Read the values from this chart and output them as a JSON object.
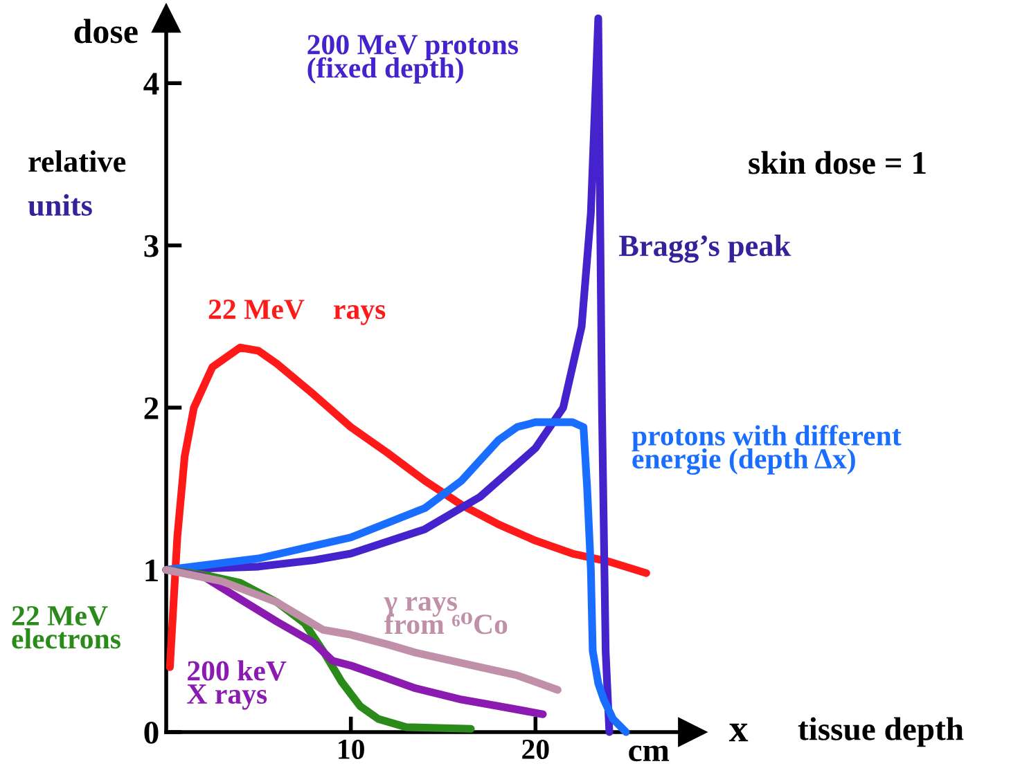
{
  "chart_data": {
    "type": "line",
    "xlabel": "x",
    "ylabel": "dose",
    "xlim": [
      0,
      28.5
    ],
    "ylim": [
      0,
      4.4
    ],
    "xticks": [
      10,
      20
    ],
    "yticks": [
      0,
      1,
      2,
      3,
      4
    ],
    "grid": false,
    "legend": false,
    "marker": "none",
    "line_style": "solid",
    "annotations": [
      "relative",
      "units",
      "skin dose = 1",
      "Bragg’s peak",
      "tissue depth",
      "cm"
    ],
    "series": [
      {
        "name": "22 MeV    rays",
        "color": "#ff1a1a",
        "x": [
          0.2,
          0.6,
          1,
          1.5,
          2.5,
          4,
          5,
          6,
          8,
          10,
          12,
          14,
          16,
          18,
          20,
          22,
          24,
          26
        ],
        "values": [
          0.4,
          1.2,
          1.7,
          2.0,
          2.25,
          2.37,
          2.35,
          2.27,
          2.08,
          1.88,
          1.72,
          1.55,
          1.4,
          1.28,
          1.18,
          1.1,
          1.05,
          0.98
        ]
      },
      {
        "name": "200 MeV protons\n(fixed depth)",
        "color": "#4422cc",
        "x": [
          0,
          5,
          8,
          10,
          14,
          17,
          20,
          21.5,
          22.5,
          23,
          23.4,
          23.6,
          23.8,
          24.0
        ],
        "values": [
          1.0,
          1.02,
          1.06,
          1.1,
          1.25,
          1.45,
          1.75,
          2.0,
          2.5,
          3.2,
          4.4,
          2.0,
          0.5,
          0.0
        ]
      },
      {
        "name": "protons with different\nenergie (depth Δx)",
        "color": "#1a6eff",
        "x": [
          0,
          5,
          10,
          14,
          16,
          18,
          19,
          20,
          22,
          22.6,
          22.8,
          23.0,
          23.1,
          23.4,
          23.7,
          24.2,
          24.9
        ],
        "values": [
          1.0,
          1.07,
          1.2,
          1.38,
          1.55,
          1.8,
          1.88,
          1.91,
          1.91,
          1.88,
          1.5,
          1.0,
          0.5,
          0.3,
          0.2,
          0.08,
          0.0
        ]
      },
      {
        "name": "22 MeV\nelectrons",
        "color": "#2a8a1a",
        "x": [
          0,
          2,
          4,
          6,
          7.5,
          8.5,
          9.5,
          10.5,
          11.5,
          13,
          16.5
        ],
        "values": [
          1.0,
          0.97,
          0.92,
          0.8,
          0.67,
          0.5,
          0.31,
          0.16,
          0.08,
          0.03,
          0.02
        ]
      },
      {
        "name": "200 keV\nX rays",
        "color": "#8a1ab0",
        "x": [
          0,
          2,
          4,
          6,
          8,
          9,
          10,
          12,
          13.5,
          16,
          18,
          20.4
        ],
        "values": [
          1.0,
          0.96,
          0.82,
          0.68,
          0.55,
          0.44,
          0.41,
          0.33,
          0.27,
          0.2,
          0.16,
          0.11
        ]
      },
      {
        "name": "γ rays\nfrom ⁶⁰Co",
        "color": "#c090a8",
        "x": [
          0,
          3,
          6,
          8.5,
          10,
          12,
          13.5,
          17,
          19,
          21.2
        ],
        "values": [
          1.0,
          0.93,
          0.8,
          0.63,
          0.6,
          0.54,
          0.49,
          0.4,
          0.35,
          0.26
        ]
      }
    ]
  }
}
